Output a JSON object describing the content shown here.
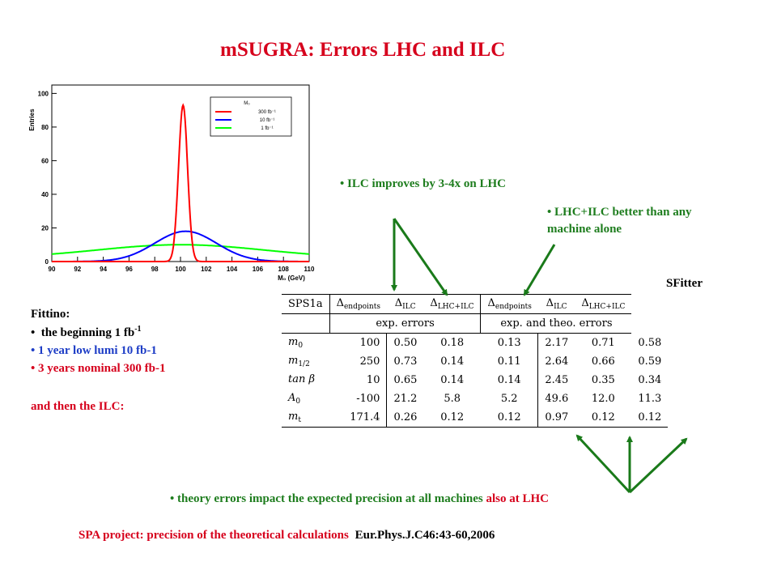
{
  "title": "mSUGRA: Errors LHC and ILC",
  "plot": {
    "ylabel": "Entries",
    "xlabel": "M₀ (GeV)",
    "yticks": [
      "0",
      "20",
      "40",
      "60",
      "80",
      "100"
    ],
    "xticks": [
      "90",
      "92",
      "94",
      "96",
      "98",
      "100",
      "102",
      "104",
      "106",
      "108",
      "110"
    ],
    "legend_title": "M₀",
    "legend": [
      {
        "label": "300 fb⁻¹",
        "color": "#ff0000"
      },
      {
        "label": "10 fb⁻¹",
        "color": "#0000ff"
      },
      {
        "label": "1 fb⁻¹",
        "color": "#00ff00"
      }
    ]
  },
  "fittino": {
    "heading": "Fittino:",
    "items": [
      {
        "text": "the beginning 1 fb",
        "sup": "-1",
        "color": "#000000"
      },
      {
        "text": "1 year low lumi 10 fb-1",
        "color": "#1d3dc6"
      },
      {
        "text": "3 years nominal 300 fb-1",
        "color": "#d6001c"
      }
    ],
    "footer": "and then the ILC:"
  },
  "notes": {
    "ilc": "ILC improves by 3-4x on LHC",
    "combined_line1": "LHC+ILC better than any",
    "combined_line2": "machine alone",
    "sfitter": "SFitter",
    "theory_green": "theory errors impact the expected precision at all machines",
    "theory_red": "also at LHC"
  },
  "footer": {
    "spa": "SPA project: precision of the theoretical calculations",
    "ref": "Eur.Phys.J.C46:43-60,2006"
  },
  "table": {
    "h_sps": "SPS1a",
    "h_end": "Δ",
    "h_end_sub": "endpoints",
    "h_ilc": "Δ",
    "h_ilc_sub": "ILC",
    "h_comb": "Δ",
    "h_comb_sub": "LHC+ILC",
    "group_exp": "exp. errors",
    "group_theo": "exp. and theo. errors",
    "rows": [
      {
        "param": "m",
        "psub": "0",
        "sps": "100",
        "e1": "0.50",
        "e2": "0.18",
        "e3": "0.13",
        "t1": "2.17",
        "t2": "0.71",
        "t3": "0.58"
      },
      {
        "param": "m",
        "psub": "1/2",
        "sps": "250",
        "e1": "0.73",
        "e2": "0.14",
        "e3": "0.11",
        "t1": "2.64",
        "t2": "0.66",
        "t3": "0.59"
      },
      {
        "param": "tan β",
        "psub": "",
        "sps": "10",
        "e1": "0.65",
        "e2": "0.14",
        "e3": "0.14",
        "t1": "2.45",
        "t2": "0.35",
        "t3": "0.34"
      },
      {
        "param": "A",
        "psub": "0",
        "sps": "-100",
        "e1": "21.2",
        "e2": "5.8",
        "e3": "5.2",
        "t1": "49.6",
        "t2": "12.0",
        "t3": "11.3"
      },
      {
        "param": "m",
        "psub": "t",
        "sps": "171.4",
        "e1": "0.26",
        "e2": "0.12",
        "e3": "0.12",
        "t1": "0.97",
        "t2": "0.12",
        "t3": "0.12"
      }
    ]
  },
  "colors": {
    "green": "#1e7d1e",
    "red": "#d6001c",
    "blue": "#1d3dc6",
    "arrow": "#1a7a1a"
  }
}
